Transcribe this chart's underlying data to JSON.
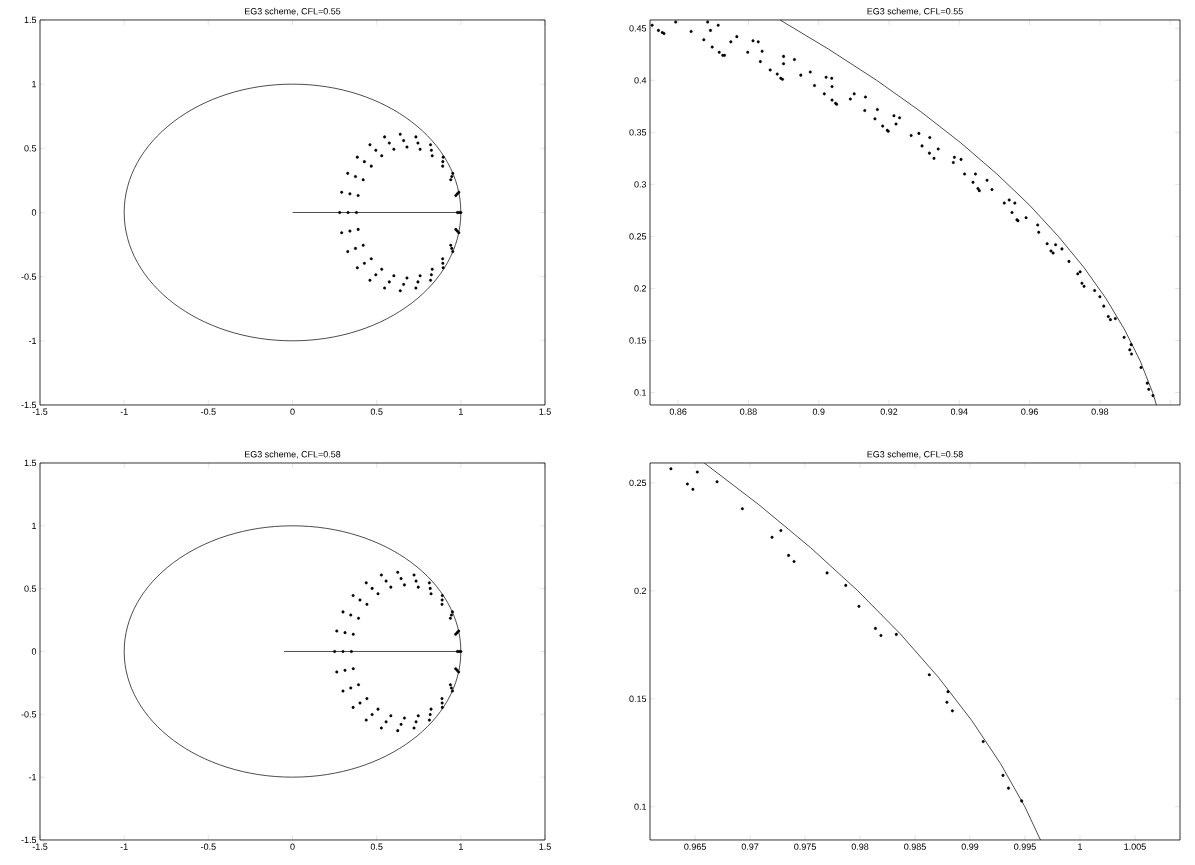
{
  "chart_data": [
    {
      "type": "scatter",
      "title": "EG3 scheme, CFL=0.55",
      "xlim": [
        -1.5,
        1.5
      ],
      "ylim": [
        -1.5,
        1.5
      ],
      "xticks": [
        -1.5,
        -1,
        -0.5,
        0,
        0.5,
        1,
        1.5
      ],
      "yticks": [
        -1.5,
        -1,
        -0.5,
        0,
        0.5,
        1,
        1.5
      ],
      "series": [
        {
          "type": "line",
          "marker": "none",
          "color": "#000000",
          "x": [
            0,
            1
          ],
          "values": [
            0,
            0
          ]
        },
        {
          "marker": "circle",
          "color": "#000000",
          "x": [
            1.0,
            0.988,
            0.952,
            0.895,
            0.82,
            0.733,
            0.64,
            0.547,
            0.46,
            0.385,
            0.328,
            0.292,
            0.28,
            0.292,
            0.328,
            0.385,
            0.46,
            0.547,
            0.64,
            0.733,
            0.82,
            0.895,
            0.952,
            0.988,
            0.99,
            0.979,
            0.946,
            0.893,
            0.825,
            0.745,
            0.66,
            0.575,
            0.495,
            0.427,
            0.374,
            0.341,
            0.33,
            0.341,
            0.374,
            0.427,
            0.495,
            0.575,
            0.66,
            0.745,
            0.825,
            0.893,
            0.946,
            0.979,
            0.98,
            0.97,
            0.94,
            0.892,
            0.83,
            0.758,
            0.68,
            0.602,
            0.53,
            0.468,
            0.42,
            0.39,
            0.38,
            0.39,
            0.42,
            0.468,
            0.53,
            0.602,
            0.68,
            0.758,
            0.83,
            0.892,
            0.94,
            0.97
          ],
          "values": [
            0,
            0.158,
            0.305,
            0.431,
            0.528,
            0.589,
            0.61,
            0.589,
            0.528,
            0.431,
            0.305,
            0.158,
            0,
            -0.158,
            -0.305,
            -0.431,
            -0.528,
            -0.589,
            -0.61,
            -0.589,
            -0.528,
            -0.431,
            -0.305,
            -0.158,
            0,
            0.145,
            0.28,
            0.396,
            0.485,
            0.541,
            0.56,
            0.541,
            0.485,
            0.396,
            0.28,
            0.145,
            0,
            -0.145,
            -0.28,
            -0.396,
            -0.485,
            -0.541,
            -0.56,
            -0.541,
            -0.485,
            -0.396,
            -0.28,
            -0.145,
            0,
            0.132,
            0.255,
            0.361,
            0.442,
            0.493,
            0.51,
            0.493,
            0.442,
            0.361,
            0.255,
            0.132,
            0,
            -0.132,
            -0.255,
            -0.361,
            -0.442,
            -0.493,
            -0.51,
            -0.493,
            -0.442,
            -0.361,
            -0.255,
            -0.132
          ]
        }
      ]
    },
    {
      "type": "scatter",
      "title": "EG3 scheme, CFL=0.55",
      "xlim": [
        0.852,
        1.0028
      ],
      "ylim": [
        0.088,
        0.458
      ],
      "xticks": [
        0.86,
        0.88,
        0.9,
        0.92,
        0.94,
        0.96,
        0.98,
        {
          "value": 1,
          "label": null
        }
      ],
      "yticks": [
        0.1,
        0.15,
        0.2,
        0.25,
        0.3,
        0.35,
        0.4,
        0.45
      ],
      "series": [
        {
          "type": "line",
          "marker": "none",
          "color": "#000000",
          "x": [
            0.889,
            0.9028,
            0.9165,
            0.929,
            0.9404,
            0.9507,
            0.96,
            0.9682,
            0.9755,
            0.9818,
            0.9871,
            0.9915,
            0.995,
            0.9961
          ],
          "values": [
            0.458,
            0.43,
            0.4,
            0.37,
            0.34,
            0.31,
            0.28,
            0.25,
            0.22,
            0.19,
            0.16,
            0.13,
            0.1,
            0.088
          ]
        },
        {
          "marker": "circle",
          "color": "#000000",
          "x": [
            0.8526,
            0.8544,
            0.8555,
            0.856,
            0.8593,
            0.8637,
            0.8673,
            0.8684,
            0.8692,
            0.8697,
            0.8714,
            0.8717,
            0.8727,
            0.8732,
            0.875,
            0.8767,
            0.8798,
            0.8813,
            0.8828,
            0.8834,
            0.8839,
            0.8862,
            0.8882,
            0.8892,
            0.8897,
            0.89,
            0.89,
            0.8931,
            0.8949,
            0.8976,
            0.8988,
            0.9016,
            0.9021,
            0.9037,
            0.9038,
            0.9038,
            0.9048,
            0.9051,
            0.909,
            0.9101,
            0.9131,
            0.9133,
            0.916,
            0.9167,
            0.9182,
            0.9195,
            0.9198,
            0.9214,
            0.922,
            0.923,
            0.9263,
            0.9285,
            0.9294,
            0.9315,
            0.9316,
            0.9328,
            0.934,
            0.9383,
            0.9386,
            0.9405,
            0.9415,
            0.9439,
            0.9446,
            0.9453,
            0.9457,
            0.9479,
            0.9493,
            0.9528,
            0.9542,
            0.955,
            0.9558,
            0.9564,
            0.9567,
            0.959,
            0.9623,
            0.9626,
            0.965,
            0.9661,
            0.9667,
            0.9674,
            0.9692,
            0.9712,
            0.9737,
            0.9744,
            0.9749,
            0.9755,
            0.9785,
            0.98,
            0.9811,
            0.9824,
            0.983,
            0.9844,
            0.9869,
            0.9889,
            0.9885,
            0.989,
            0.9917,
            0.9935,
            0.9939,
            0.9951
          ],
          "values": [
            0.453,
            0.448,
            0.446,
            0.445,
            0.456,
            0.447,
            0.439,
            0.456,
            0.448,
            0.432,
            0.453,
            0.427,
            0.424,
            0.424,
            0.437,
            0.442,
            0.427,
            0.438,
            0.437,
            0.418,
            0.428,
            0.41,
            0.406,
            0.402,
            0.401,
            0.423,
            0.416,
            0.42,
            0.405,
            0.408,
            0.395,
            0.387,
            0.403,
            0.402,
            0.394,
            0.381,
            0.378,
            0.377,
            0.382,
            0.387,
            0.371,
            0.384,
            0.363,
            0.372,
            0.356,
            0.352,
            0.351,
            0.366,
            0.358,
            0.364,
            0.347,
            0.349,
            0.337,
            0.33,
            0.345,
            0.325,
            0.334,
            0.321,
            0.326,
            0.324,
            0.31,
            0.302,
            0.31,
            0.296,
            0.294,
            0.304,
            0.295,
            0.282,
            0.285,
            0.273,
            0.282,
            0.266,
            0.265,
            0.268,
            0.261,
            0.254,
            0.243,
            0.236,
            0.234,
            0.242,
            0.238,
            0.226,
            0.214,
            0.216,
            0.205,
            0.202,
            0.198,
            0.192,
            0.183,
            0.173,
            0.17,
            0.171,
            0.153,
            0.146,
            0.141,
            0.137,
            0.124,
            0.109,
            0.103,
            0.097
          ]
        }
      ]
    },
    {
      "type": "scatter",
      "title": "EG3 scheme, CFL=0.58",
      "xlim": [
        -1.5,
        1.5
      ],
      "ylim": [
        -1.5,
        1.5
      ],
      "xticks": [
        -1.5,
        -1,
        -0.5,
        0,
        0.5,
        1,
        1.5
      ],
      "yticks": [
        -1.5,
        -1,
        -0.5,
        0,
        0.5,
        1,
        1.5
      ],
      "series": [
        {
          "type": "line",
          "marker": "none",
          "color": "#000000",
          "x": [
            -0.05,
            1
          ],
          "values": [
            0,
            0
          ]
        },
        {
          "marker": "circle",
          "color": "#000000",
          "x": [
            1.0,
            0.987,
            0.95,
            0.89,
            0.813,
            0.722,
            0.625,
            0.528,
            0.438,
            0.36,
            0.3,
            0.263,
            0.25,
            0.263,
            0.3,
            0.36,
            0.438,
            0.528,
            0.625,
            0.722,
            0.813,
            0.89,
            0.95,
            0.987,
            0.99,
            0.978,
            0.944,
            0.889,
            0.818,
            0.734,
            0.645,
            0.556,
            0.473,
            0.401,
            0.346,
            0.312,
            0.3,
            0.312,
            0.346,
            0.401,
            0.473,
            0.556,
            0.645,
            0.734,
            0.818,
            0.889,
            0.944,
            0.978,
            0.98,
            0.969,
            0.938,
            0.888,
            0.823,
            0.747,
            0.665,
            0.584,
            0.508,
            0.442,
            0.392,
            0.361,
            0.35,
            0.361,
            0.392,
            0.442,
            0.508,
            0.584,
            0.665,
            0.747,
            0.823,
            0.888,
            0.938,
            0.969
          ],
          "values": [
            0,
            0.163,
            0.315,
            0.445,
            0.546,
            0.609,
            0.63,
            0.609,
            0.546,
            0.445,
            0.315,
            0.163,
            0,
            -0.163,
            -0.315,
            -0.445,
            -0.546,
            -0.609,
            -0.63,
            -0.609,
            -0.546,
            -0.445,
            -0.315,
            -0.163,
            0,
            0.15,
            0.29,
            0.41,
            0.502,
            0.56,
            0.58,
            0.56,
            0.502,
            0.41,
            0.29,
            0.15,
            0,
            -0.15,
            -0.29,
            -0.41,
            -0.502,
            -0.56,
            -0.58,
            -0.56,
            -0.502,
            -0.41,
            -0.29,
            -0.15,
            0,
            0.137,
            0.265,
            0.375,
            0.459,
            0.512,
            0.53,
            0.512,
            0.459,
            0.375,
            0.265,
            0.137,
            0,
            -0.137,
            -0.265,
            -0.375,
            -0.459,
            -0.512,
            -0.53,
            -0.512,
            -0.459,
            -0.375,
            -0.265,
            -0.137
          ]
        }
      ]
    },
    {
      "type": "scatter",
      "title": "EG3 scheme, CFL=0.58",
      "xlim": [
        0.9609,
        1.0091
      ],
      "ylim": [
        0.0846,
        0.2592
      ],
      "xticks": [
        0.965,
        0.97,
        0.975,
        0.98,
        0.985,
        0.99,
        0.995,
        1,
        1.005
      ],
      "yticks": [
        0.1,
        0.15,
        0.2,
        0.25
      ],
      "series": [
        {
          "type": "line",
          "marker": "none",
          "color": "#000000",
          "x": [
            0.96583,
            0.97077,
            0.9755,
            0.9798,
            0.98367,
            0.98712,
            0.99015,
            0.99277,
            0.99499,
            0.99641
          ],
          "values": [
            0.2592,
            0.24,
            0.22,
            0.2,
            0.18,
            0.16,
            0.14,
            0.12,
            0.1,
            0.0846
          ]
        },
        {
          "marker": "circle",
          "color": "#000000",
          "x": [
            0.9628,
            0.9643,
            0.9648,
            0.9652,
            0.967,
            0.9693,
            0.972,
            0.9728,
            0.9735,
            0.974,
            0.977,
            0.9787,
            0.9799,
            0.9814,
            0.9819,
            0.9833,
            0.9863,
            0.9879,
            0.988,
            0.9884,
            0.9912,
            0.993,
            0.9935,
            0.9947
          ],
          "values": [
            0.2565,
            0.2495,
            0.247,
            0.255,
            0.2505,
            0.238,
            0.2248,
            0.2279,
            0.2164,
            0.2136,
            0.2083,
            0.2025,
            0.1928,
            0.1826,
            0.1793,
            0.1798,
            0.1611,
            0.1484,
            0.1533,
            0.1444,
            0.1302,
            0.1145,
            0.1086,
            0.1027
          ]
        }
      ]
    }
  ]
}
